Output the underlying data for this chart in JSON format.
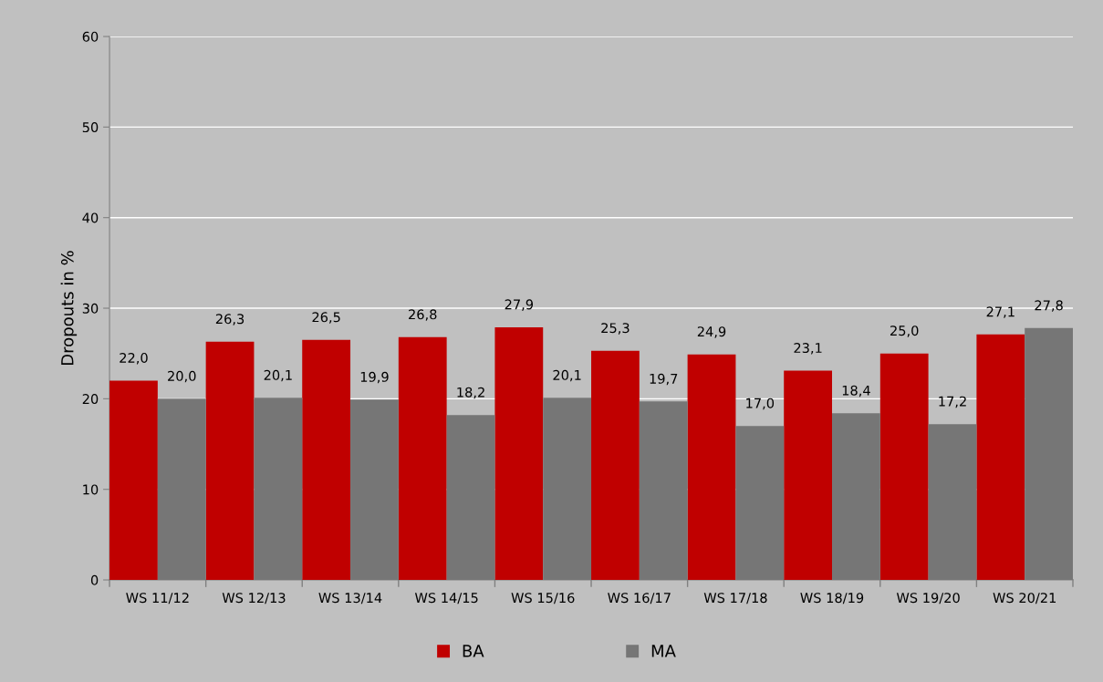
{
  "chart_data": {
    "type": "bar",
    "ylabel": "Dropouts in %",
    "categories": [
      "WS 11/12",
      "WS 12/13",
      "WS 13/14",
      "WS 14/15",
      "WS 15/16",
      "WS 16/17",
      "WS 17/18",
      "WS 18/19",
      "WS 19/20",
      "WS 20/21"
    ],
    "series": [
      {
        "name": "BA",
        "color": "#c00000",
        "values": [
          22.0,
          26.3,
          26.5,
          26.8,
          27.9,
          25.3,
          24.9,
          23.1,
          25.0,
          27.1
        ],
        "value_labels": [
          "22,0",
          "26,3",
          "26,5",
          "26,8",
          "27,9",
          "25,3",
          "24,9",
          "23,1",
          "25,0",
          "27,1"
        ]
      },
      {
        "name": "MA",
        "color": "#767676",
        "values": [
          20.0,
          20.1,
          19.9,
          18.2,
          20.1,
          19.7,
          17.0,
          18.4,
          17.2,
          27.8
        ],
        "value_labels": [
          "20,0",
          "20,1",
          "19,9",
          "18,2",
          "20,1",
          "19,7",
          "17,0",
          "18,4",
          "17,2",
          "27,8"
        ]
      }
    ],
    "ylim": [
      0,
      60
    ],
    "yticks": [
      0,
      10,
      20,
      30,
      40,
      50,
      60
    ],
    "grid": "y",
    "legend": "bottom"
  }
}
